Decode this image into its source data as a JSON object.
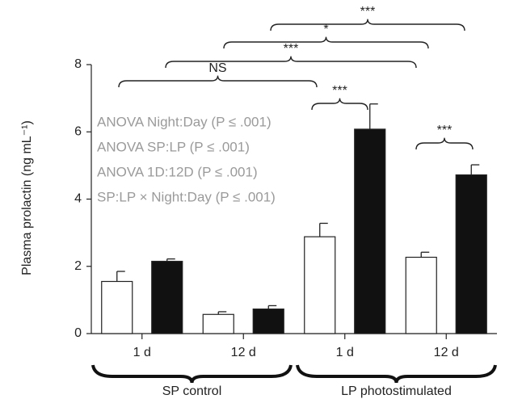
{
  "chart_data": {
    "type": "bar",
    "ylabel": "Plasma prolactin (ng mL⁻¹)",
    "categories": [
      "1 d",
      "12 d",
      "1 d",
      "12 d"
    ],
    "groups": [
      "SP control",
      "LP photostimulated"
    ],
    "series": [
      {
        "color": "#ffffff",
        "values": [
          1.55,
          0.57,
          2.88,
          2.27
        ],
        "errors": [
          0.3,
          0.08,
          0.4,
          0.15
        ]
      },
      {
        "color": "#111111",
        "values": [
          2.15,
          0.73,
          6.08,
          4.72
        ],
        "errors": [
          0.07,
          0.1,
          0.75,
          0.3
        ]
      }
    ],
    "ylim": [
      0,
      8
    ],
    "yticks": [
      0,
      2,
      4,
      6,
      8
    ],
    "annotations": [
      "ANOVA Night:Day (P ≤ .001)",
      "ANOVA SP:LP (P ≤ .001)",
      "ANOVA 1D:12D (P ≤ .001)",
      "SP:LP × Night:Day (P ≤ .001)"
    ],
    "brackets": [
      {
        "label": "NS"
      },
      {
        "label": "***"
      },
      {
        "label": "*"
      },
      {
        "label": "***"
      },
      {
        "label": "***"
      },
      {
        "label": "***"
      }
    ]
  }
}
